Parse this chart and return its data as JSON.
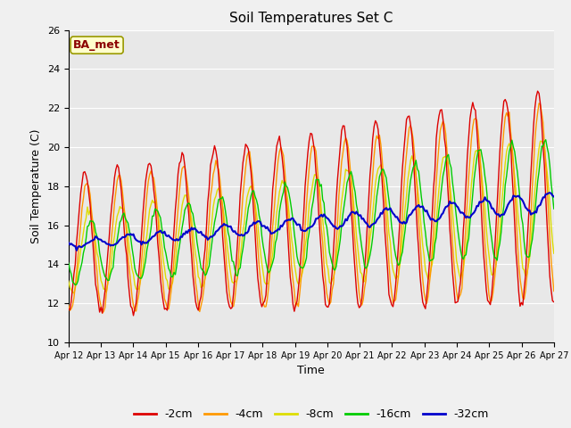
{
  "title": "Soil Temperatures Set C",
  "xlabel": "Time",
  "ylabel": "Soil Temperature (C)",
  "ylim": [
    10,
    26
  ],
  "annotation": "BA_met",
  "colors": {
    "-2cm": "#dd0000",
    "-4cm": "#ff9900",
    "-8cm": "#dddd00",
    "-16cm": "#00cc00",
    "-32cm": "#0000cc"
  },
  "legend_labels": [
    "-2cm",
    "-4cm",
    "-8cm",
    "-16cm",
    "-32cm"
  ],
  "plot_bg": "#e8e8e8",
  "fig_bg": "#f0f0f0",
  "grid_color": "#ffffff"
}
